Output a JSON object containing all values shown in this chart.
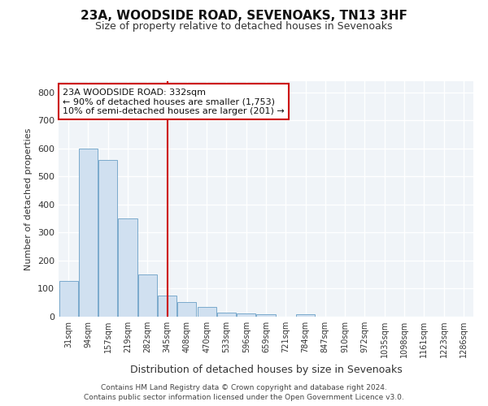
{
  "title": "23A, WOODSIDE ROAD, SEVENOAKS, TN13 3HF",
  "subtitle": "Size of property relative to detached houses in Sevenoaks",
  "xlabel": "Distribution of detached houses by size in Sevenoaks",
  "ylabel": "Number of detached properties",
  "categories": [
    "31sqm",
    "94sqm",
    "157sqm",
    "219sqm",
    "282sqm",
    "345sqm",
    "408sqm",
    "470sqm",
    "533sqm",
    "596sqm",
    "659sqm",
    "721sqm",
    "784sqm",
    "847sqm",
    "910sqm",
    "972sqm",
    "1035sqm",
    "1098sqm",
    "1161sqm",
    "1223sqm",
    "1286sqm"
  ],
  "values": [
    128,
    600,
    560,
    350,
    152,
    75,
    52,
    35,
    15,
    12,
    8,
    0,
    8,
    0,
    0,
    0,
    0,
    0,
    0,
    0,
    0
  ],
  "bar_color": "#d0e0f0",
  "bar_edge_color": "#7aaacc",
  "vline_x_index": 5,
  "vline_color": "#cc0000",
  "annotation_title": "23A WOODSIDE ROAD: 332sqm",
  "annotation_line1": "← 90% of detached houses are smaller (1,753)",
  "annotation_line2": "10% of semi-detached houses are larger (201) →",
  "annotation_box_color": "#ffffff",
  "annotation_box_edge_color": "#cc0000",
  "ylim": [
    0,
    840
  ],
  "yticks": [
    0,
    100,
    200,
    300,
    400,
    500,
    600,
    700,
    800
  ],
  "bg_color": "#ffffff",
  "plot_bg_color": "#f0f4f8",
  "footer_line1": "Contains HM Land Registry data © Crown copyright and database right 2024.",
  "footer_line2": "Contains public sector information licensed under the Open Government Licence v3.0."
}
